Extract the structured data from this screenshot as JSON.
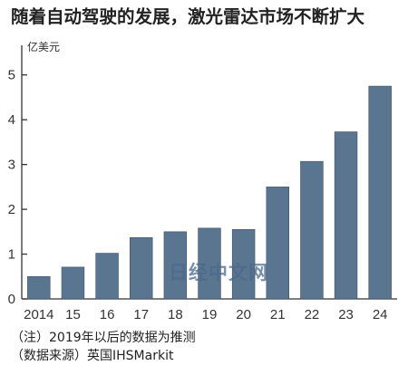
{
  "header": {
    "title": "随着自动驾驶的发展，激光雷达市场不断扩大",
    "unit": "亿美元"
  },
  "notes": {
    "line1": "（注）2019年以后的数据为推测",
    "line2": "（数据来源）英国IHSMarkit"
  },
  "watermark": "日经中文网",
  "colors": {
    "bar": "#5a7590",
    "bar_edge": "#3d5368",
    "axis": "#333333"
  },
  "chart_data": {
    "type": "bar",
    "title": "随着自动驾驶的发展，激光雷达市场不断扩大",
    "ylabel": "亿美元",
    "xlabel": "",
    "categories": [
      "2014",
      "15",
      "16",
      "17",
      "18",
      "19",
      "20",
      "21",
      "22",
      "23",
      "24"
    ],
    "values": [
      0.5,
      0.71,
      1.02,
      1.37,
      1.5,
      1.58,
      1.55,
      2.5,
      3.07,
      3.73,
      4.75
    ],
    "ylim": [
      0,
      5.5
    ],
    "yticks": [
      0,
      1,
      2,
      3,
      4,
      5
    ],
    "grid": false,
    "legend": "none"
  }
}
